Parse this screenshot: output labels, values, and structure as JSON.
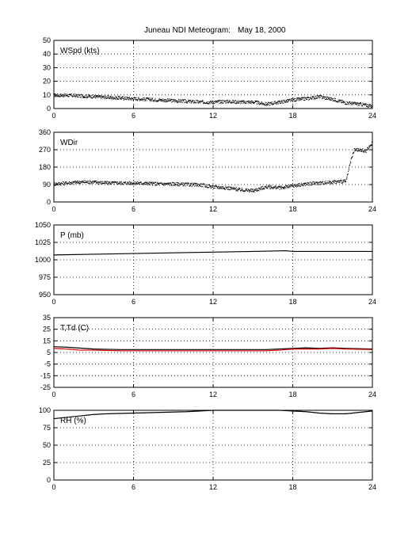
{
  "header": {
    "title": "Juneau NDI Meteogram:",
    "date": "May 18, 2000"
  },
  "chart_data": [
    {
      "type": "scatter",
      "label": "WSpd (kts)",
      "ylim": [
        0,
        50
      ],
      "yticks": [
        0,
        10,
        20,
        30,
        40,
        50
      ],
      "xlim": [
        0,
        24
      ],
      "xticks": [
        0,
        6,
        12,
        18,
        24
      ],
      "grid": true,
      "series": [
        {
          "color": "#000000",
          "style": "dots",
          "x": [
            0,
            1,
            2,
            3,
            4,
            5,
            6,
            7,
            8,
            9,
            10,
            11,
            12,
            13,
            14,
            15,
            16,
            17,
            18,
            19,
            20,
            21,
            22,
            23,
            24
          ],
          "y": [
            10,
            10,
            9.5,
            9,
            8.5,
            8,
            7.5,
            7,
            6.5,
            6,
            5.5,
            5,
            5,
            5.5,
            5,
            5,
            3.5,
            5,
            6.5,
            7.5,
            9,
            7,
            4.5,
            3.5,
            2
          ]
        }
      ]
    },
    {
      "type": "scatter",
      "label": "WDir",
      "ylim": [
        0,
        360
      ],
      "yticks": [
        0,
        90,
        180,
        270,
        360
      ],
      "xlim": [
        0,
        24
      ],
      "xticks": [
        0,
        6,
        12,
        18,
        24
      ],
      "grid": true,
      "series": [
        {
          "color": "#000000",
          "style": "dots",
          "x": [
            0,
            1,
            2,
            3,
            4,
            5,
            6,
            7,
            8,
            9,
            10,
            11,
            12,
            13,
            14,
            15,
            16,
            17,
            18,
            19,
            20,
            21,
            22,
            22.3,
            22.6,
            23,
            23.5,
            24
          ],
          "y": [
            95,
            100,
            105,
            105,
            100,
            100,
            100,
            98,
            95,
            95,
            92,
            90,
            80,
            75,
            65,
            60,
            80,
            75,
            85,
            95,
            100,
            105,
            110,
            200,
            270,
            270,
            265,
            310
          ]
        }
      ]
    },
    {
      "type": "line",
      "label": "P (mb)",
      "ylim": [
        950,
        1050
      ],
      "yticks": [
        950,
        975,
        1000,
        1025,
        1050
      ],
      "xlim": [
        0,
        24
      ],
      "xticks": [
        0,
        6,
        12,
        18,
        24
      ],
      "grid": true,
      "series": [
        {
          "color": "#000000",
          "style": "line",
          "x": [
            0,
            3,
            6,
            9,
            12,
            15,
            17.5,
            18,
            20,
            24
          ],
          "y": [
            1007,
            1008,
            1009,
            1010,
            1011,
            1012,
            1013,
            1012,
            1012,
            1012
          ]
        }
      ]
    },
    {
      "type": "line",
      "label": "T,Td (C)",
      "ylim": [
        -25,
        35
      ],
      "yticks": [
        -25,
        -15,
        -5,
        5,
        15,
        25,
        35
      ],
      "xlim": [
        0,
        24
      ],
      "xticks": [
        0,
        6,
        12,
        18,
        24
      ],
      "grid": true,
      "series": [
        {
          "color": "#000000",
          "style": "line",
          "x": [
            0,
            1,
            3,
            5,
            8,
            12,
            16,
            18,
            19,
            20,
            21,
            22,
            24
          ],
          "y": [
            10,
            9.5,
            8,
            7.5,
            7.5,
            7.5,
            7.5,
            8.5,
            9,
            8.5,
            9,
            8.5,
            8
          ]
        },
        {
          "color": "#dd0000",
          "style": "line",
          "x": [
            0,
            1,
            2,
            3,
            5,
            8,
            12,
            16,
            17,
            18,
            19,
            20,
            21,
            22,
            24
          ],
          "y": [
            8.5,
            8,
            7,
            7,
            6.5,
            6.5,
            6.5,
            6.5,
            7,
            8,
            8,
            8,
            8.5,
            8,
            7.5
          ]
        }
      ]
    },
    {
      "type": "line",
      "label": "RH (%)",
      "ylim": [
        0,
        100
      ],
      "yticks": [
        0,
        25,
        50,
        75,
        100
      ],
      "xlim": [
        0,
        24
      ],
      "xticks": [
        0,
        6,
        12,
        18,
        24
      ],
      "grid": true,
      "series": [
        {
          "color": "#000000",
          "style": "line",
          "x": [
            0,
            1,
            2,
            3,
            4,
            6,
            8,
            10,
            12,
            14,
            17,
            18,
            19,
            20,
            21,
            22,
            23,
            24
          ],
          "y": [
            88,
            90,
            92,
            94,
            95,
            96,
            97,
            98,
            100,
            100,
            100,
            99,
            98,
            96,
            95,
            95,
            97,
            99
          ]
        }
      ]
    }
  ]
}
